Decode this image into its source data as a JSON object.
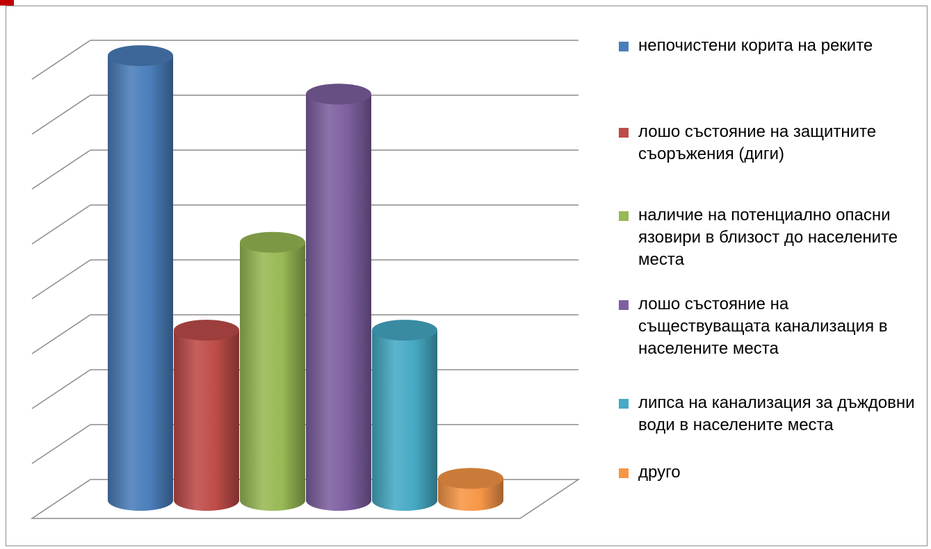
{
  "chart_data": {
    "type": "bar",
    "title": "",
    "categories": [
      "непочистени корита на реките",
      "лошо състояние на защитните съоръжения (диги)",
      "наличие на потенциално опасни язовири в близост до населените места",
      "лошо състояние на съществуващата канализация в населените места",
      "липса на канализация за дъждовни води в населените места",
      "друго"
    ],
    "values": [
      81,
      31,
      47,
      74,
      31,
      4
    ],
    "colors": [
      "#4a7ebb",
      "#be4b48",
      "#98b954",
      "#7d5fa0",
      "#46aac5",
      "#f79646"
    ],
    "ylim": [
      0,
      80
    ],
    "grid": true,
    "legend_position": "right",
    "legend": [
      "непочистени корита на реките",
      "лошо състояние на защитните съоръжения (диги)",
      "наличие на потенциално опасни язовири в близост до населените места",
      "лошо състояние на съществуващата канализация в населените места",
      "липса на канализация за дъждовни води в населените места",
      "друго"
    ]
  }
}
